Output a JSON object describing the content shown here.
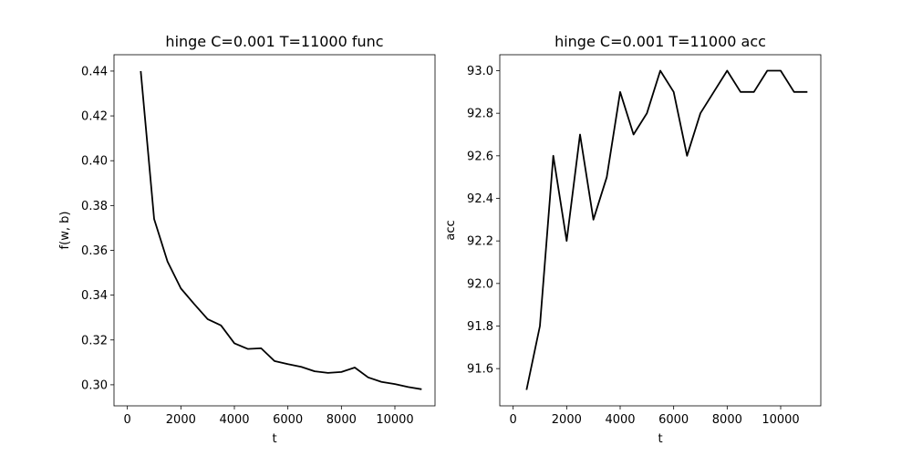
{
  "chart_data": [
    {
      "type": "line",
      "title": "hinge C=0.001 T=11000 func",
      "xlabel": "t",
      "ylabel": "f(w, b)",
      "xlim": [
        -500,
        11500
      ],
      "ylim": [
        0.2906,
        0.4473
      ],
      "xticks": [
        0,
        2000,
        4000,
        6000,
        8000,
        10000
      ],
      "xtick_labels": [
        "0",
        "2000",
        "4000",
        "6000",
        "8000",
        "10000"
      ],
      "yticks": [
        0.3,
        0.32,
        0.34,
        0.36,
        0.38,
        0.4,
        0.42,
        0.44
      ],
      "ytick_labels": [
        "0.30",
        "0.32",
        "0.34",
        "0.36",
        "0.38",
        "0.40",
        "0.42",
        "0.44"
      ],
      "grid": false,
      "series": [
        {
          "color": "#000000",
          "x": [
            500,
            1000,
            1500,
            2000,
            2500,
            3000,
            3500,
            4000,
            4500,
            5000,
            5500,
            6000,
            6500,
            7000,
            7500,
            8000,
            8500,
            9000,
            9500,
            10000,
            10500,
            11000
          ],
          "y": [
            0.44,
            0.374,
            0.355,
            0.343,
            0.336,
            0.3293,
            0.3265,
            0.3185,
            0.316,
            0.3163,
            0.3106,
            0.3092,
            0.308,
            0.306,
            0.3053,
            0.3057,
            0.3077,
            0.3033,
            0.3013,
            0.3003,
            0.299,
            0.298
          ]
        }
      ]
    },
    {
      "type": "line",
      "title": "hinge C=0.001 T=11000 acc",
      "xlabel": "t",
      "ylabel": "acc",
      "xlim": [
        -500,
        11500
      ],
      "ylim": [
        91.425,
        93.075
      ],
      "xticks": [
        0,
        2000,
        4000,
        6000,
        8000,
        10000
      ],
      "xtick_labels": [
        "0",
        "2000",
        "4000",
        "6000",
        "8000",
        "10000"
      ],
      "yticks": [
        91.6,
        91.8,
        92.0,
        92.2,
        92.4,
        92.6,
        92.8,
        93.0
      ],
      "ytick_labels": [
        "91.6",
        "91.8",
        "92.0",
        "92.2",
        "92.4",
        "92.6",
        "92.8",
        "93.0"
      ],
      "grid": false,
      "series": [
        {
          "color": "#000000",
          "x": [
            500,
            1000,
            1500,
            2000,
            2500,
            3000,
            3500,
            4000,
            4500,
            5000,
            5500,
            6000,
            6500,
            7000,
            7500,
            8000,
            8500,
            9000,
            9500,
            10000,
            10500,
            11000
          ],
          "y": [
            91.5,
            91.8,
            92.6,
            92.2,
            92.7,
            92.3,
            92.5,
            92.9,
            92.7,
            92.8,
            93.0,
            92.9,
            92.6,
            92.8,
            92.9,
            93.0,
            92.9,
            92.9,
            93.0,
            93.0,
            92.9,
            92.9
          ]
        }
      ]
    }
  ]
}
